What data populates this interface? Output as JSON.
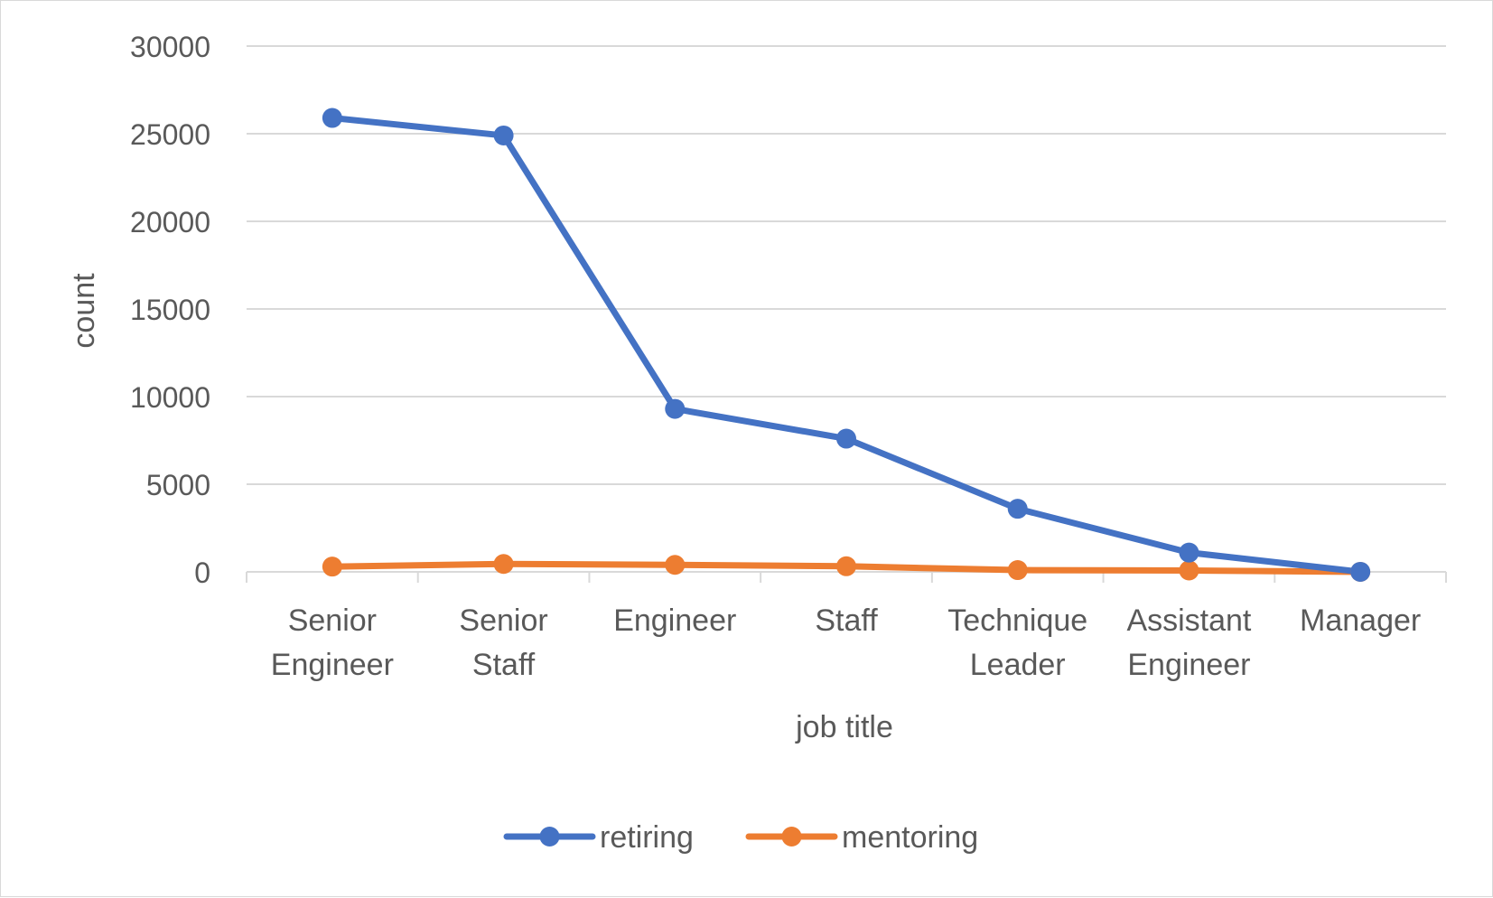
{
  "chart_data": {
    "type": "line",
    "title": "",
    "xlabel": "job title",
    "ylabel": "count",
    "ylim": [
      0,
      30000
    ],
    "yticks": [
      0,
      5000,
      10000,
      15000,
      20000,
      25000,
      30000
    ],
    "grid": true,
    "legend": "bottom",
    "categories": [
      [
        "Senior",
        "Engineer"
      ],
      [
        "Senior",
        "Staff"
      ],
      [
        "Engineer"
      ],
      [
        "Staff"
      ],
      [
        "Technique",
        "Leader"
      ],
      [
        "Assistant",
        "Engineer"
      ],
      [
        "Manager"
      ]
    ],
    "series": [
      {
        "name": "retiring",
        "color": "#4472c4",
        "values": [
          25900,
          24900,
          9300,
          7600,
          3600,
          1100,
          2
        ]
      },
      {
        "name": "mentoring",
        "color": "#ed7d31",
        "values": [
          300,
          450,
          400,
          320,
          100,
          80,
          0
        ]
      }
    ]
  }
}
